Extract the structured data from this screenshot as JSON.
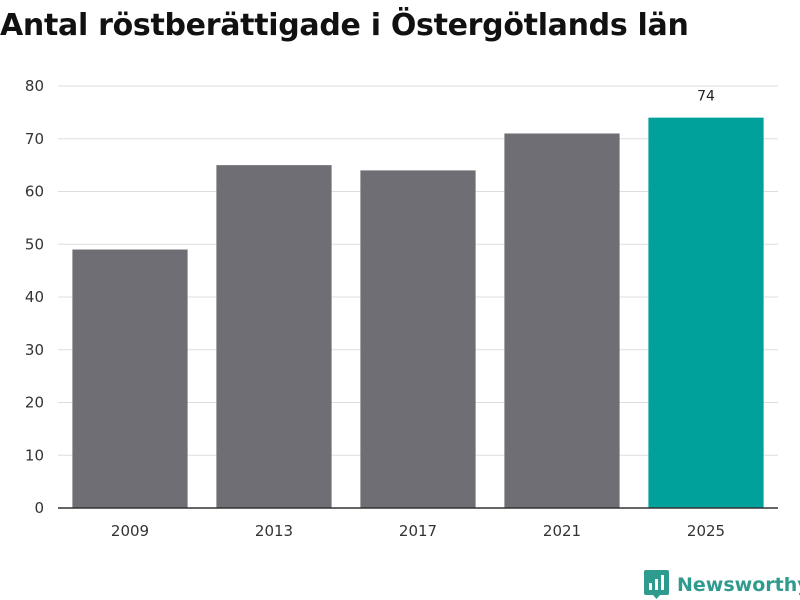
{
  "chart_data": {
    "type": "bar",
    "title": "Antal röstberättigade i Östergötlands län",
    "categories": [
      "2009",
      "2013",
      "2017",
      "2021",
      "2025"
    ],
    "values": [
      49,
      65,
      64,
      71,
      74
    ],
    "ylim": [
      0,
      80
    ],
    "yticks": [
      0,
      10,
      20,
      30,
      40,
      50,
      60,
      70,
      80
    ],
    "grid": true,
    "data_labels": {
      "2025": "74"
    },
    "colors": {
      "default": "#6f6e74",
      "highlight": "#00a19a"
    },
    "highlight_category": "2025"
  },
  "brand": {
    "name": "Newsworthy",
    "icon": "newsworthy-logo-icon",
    "color": "#2f9a8e"
  }
}
